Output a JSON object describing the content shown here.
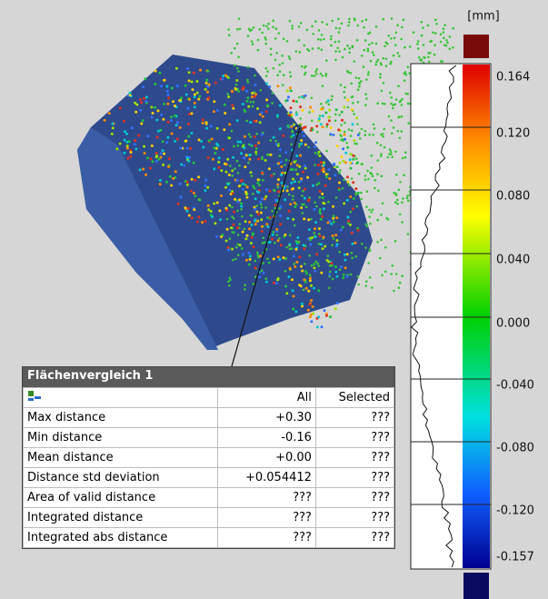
{
  "colorbar": {
    "unit": "[mm]",
    "ticks": [
      "0.164",
      "0.120",
      "0.080",
      "0.040",
      "0.000",
      "-0.040",
      "-0.080",
      "-0.120",
      "-0.157"
    ]
  },
  "table": {
    "title": "Flächenvergleich 1",
    "columns": [
      "All",
      "Selected"
    ],
    "rows": [
      [
        "Max distance",
        "+0.30",
        "???"
      ],
      [
        "Min distance",
        "-0.16",
        "???"
      ],
      [
        "Mean distance",
        "+0.00",
        "???"
      ],
      [
        "Distance std deviation",
        "+0.054412",
        "???"
      ],
      [
        "Area of valid distance",
        "???",
        "???"
      ],
      [
        "Integrated distance",
        "???",
        "???"
      ],
      [
        "Integrated abs distance",
        "???",
        "???"
      ]
    ]
  }
}
